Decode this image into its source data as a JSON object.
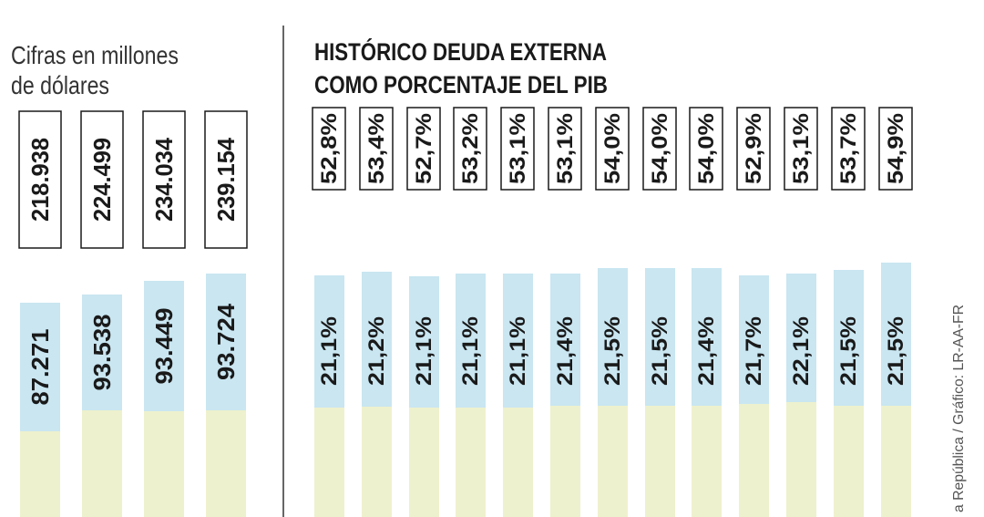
{
  "colors": {
    "blue": "#c9e6f1",
    "yellow": "#eef1cd",
    "divider": "#333333",
    "text": "#1a1a1a"
  },
  "top_fragment": "",
  "left": {
    "subtitle_line1": "Cifras en millones",
    "subtitle_line2": "de dólares"
  },
  "right": {
    "title_line1": "HISTÓRICO DEUDA EXTERNA",
    "title_line2": "COMO PORCENTAJE DEL PIB"
  },
  "source": "a República / Gráfico: LR-AA-FR",
  "chart_data": [
    {
      "type": "bar",
      "boxed_labels": [
        "218.938",
        "224.499",
        "234.034",
        "239.154"
      ],
      "inner_labels": [
        "87.271",
        "93.538",
        "93.449",
        "93.724"
      ],
      "values_total": [
        218938,
        224499,
        234034,
        239154
      ],
      "values_segment": [
        87271,
        93538,
        93449,
        93724
      ]
    },
    {
      "type": "bar",
      "boxed_labels": [
        "52,8%",
        "53,4%",
        "52,7%",
        "53,2%",
        "53,1%",
        "53,1%",
        "54,0%",
        "54,0%",
        "54,0%",
        "52,9%",
        "53,1%",
        "53,7%",
        "54,9%"
      ],
      "inner_labels": [
        "21,1%",
        "21,2%",
        "21,1%",
        "21,1%",
        "21,1%",
        "21,4%",
        "21,5%",
        "21,5%",
        "21,4%",
        "21,7%",
        "22,1%",
        "21,5%",
        "21,5%"
      ],
      "values_total": [
        52.8,
        53.4,
        52.7,
        53.2,
        53.1,
        53.1,
        54.0,
        54.0,
        54.0,
        52.9,
        53.1,
        53.7,
        54.9
      ],
      "values_segment": [
        21.1,
        21.2,
        21.1,
        21.1,
        21.1,
        21.4,
        21.5,
        21.5,
        21.4,
        21.7,
        22.1,
        21.5,
        21.5
      ]
    }
  ]
}
